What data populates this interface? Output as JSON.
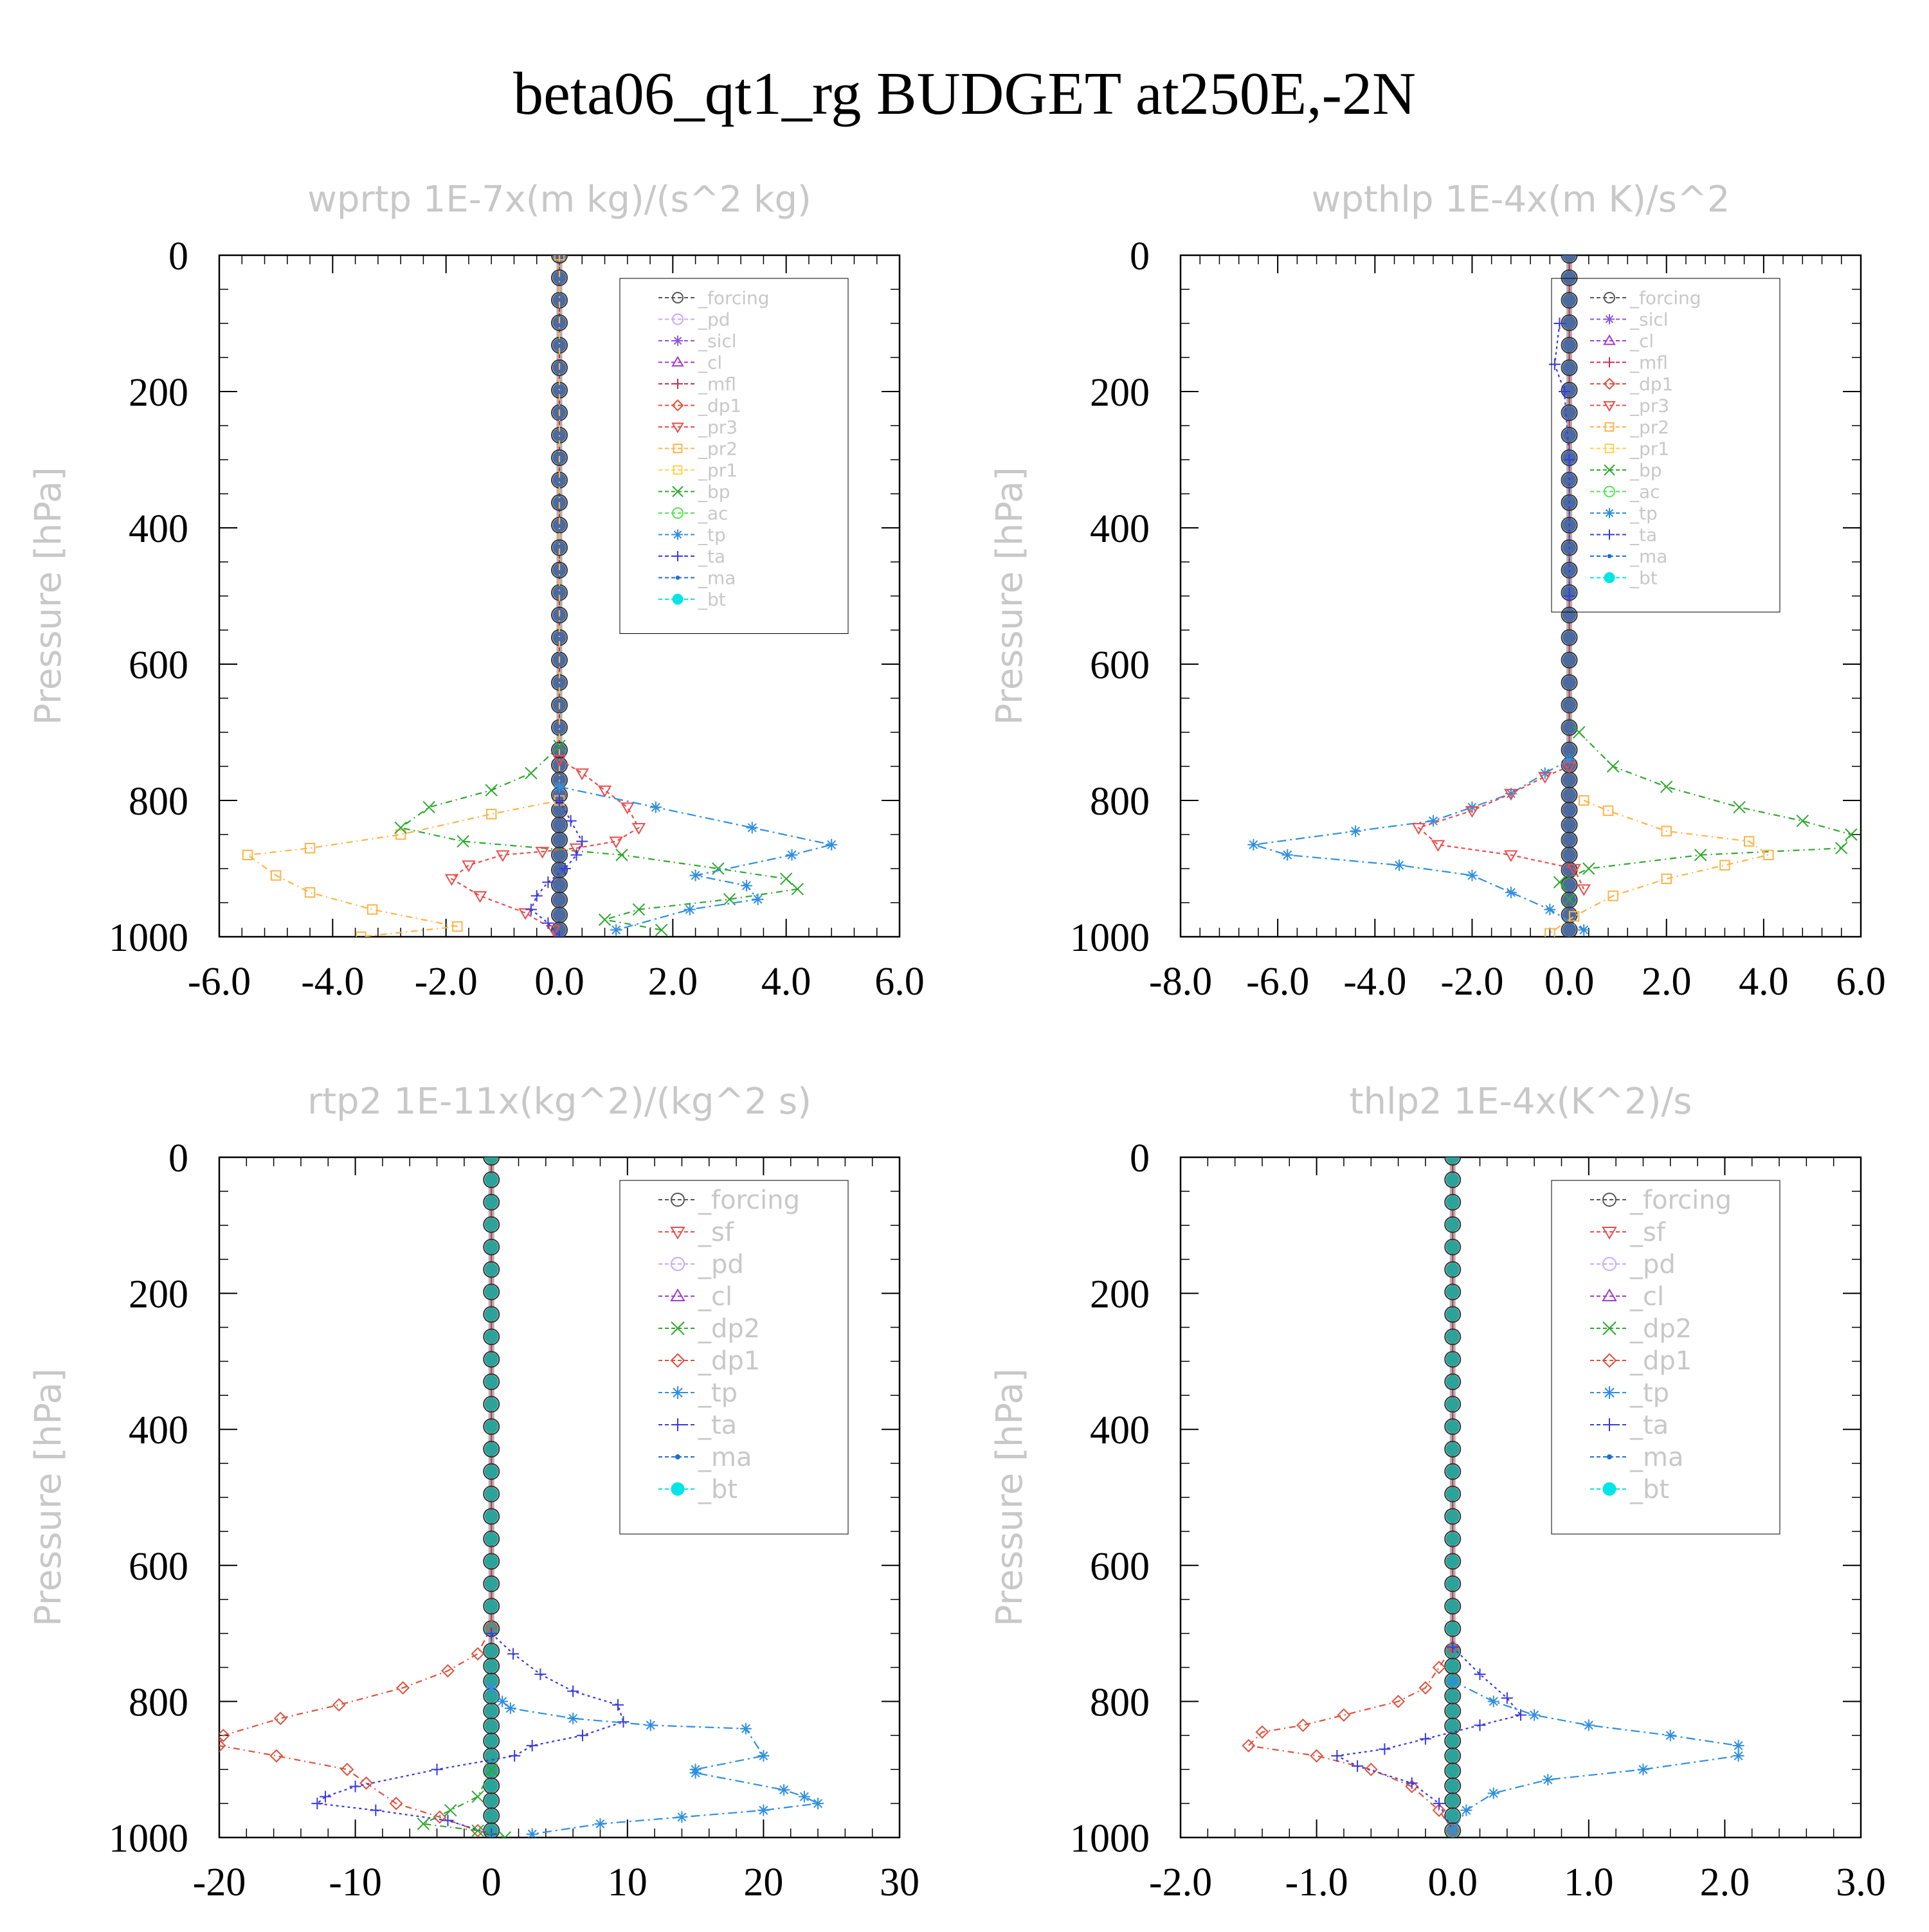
{
  "title": "beta06_qt1_rg  BUDGET at250E,-2N",
  "marker_colors": {
    "_forcing": "#555555",
    "_pd": "#c9a6ff",
    "_sicl": "#8a5ad8",
    "_cl": "#a23bd0",
    "_mfl": "#c8304f",
    "_dp1": "#e0503c",
    "_pr3": "#ee4b4b",
    "_pr2": "#ffb347",
    "_pr1": "#ffd24a",
    "_bp": "#2ea82e",
    "_ac": "#55e055",
    "_tp": "#2f8fe0",
    "_ta": "#3a3ae0",
    "_ma": "#1f6fd0",
    "_bt": "#00e5e5",
    "_sf": "#ee4b4b",
    "_dp2": "#2ea82e"
  },
  "chart_data": [
    {
      "type": "line",
      "title": "wprtp  1E-7x(m kg)/(s^2 kg)",
      "ylabel": "Pressure [hPa]",
      "xlim": [
        -6.0,
        6.0
      ],
      "ylim": [
        0,
        1000
      ],
      "y_inverted": true,
      "xticks": [
        "-6.0",
        "-4.0",
        "-2.0",
        "0.0",
        "2.0",
        "4.0",
        "6.0"
      ],
      "yticks": [
        "0",
        "200",
        "400",
        "600",
        "800",
        "1000"
      ],
      "legend": [
        "_forcing",
        "_pd",
        "_sicl",
        "_cl",
        "_mfl",
        "_dp1",
        "_pr3",
        "_pr2",
        "_pr1",
        "_bp",
        "_ac",
        "_tp",
        "_ta",
        "_ma",
        "_bt"
      ],
      "legend_position": "upper-right",
      "series": [
        {
          "name": "_pr2",
          "x": [
            0,
            0,
            -1.2,
            -2.8,
            -4.4,
            -5.5,
            -5.0,
            -4.4,
            -3.3,
            -1.8,
            -3.5
          ],
          "y": [
            0,
            800,
            820,
            850,
            870,
            880,
            910,
            935,
            960,
            985,
            1000
          ]
        },
        {
          "name": "_bp",
          "x": [
            0,
            -0.5,
            -1.2,
            -2.3,
            -2.8,
            -1.7,
            1.1,
            2.8,
            4.0,
            4.2,
            3.0,
            1.4,
            0.8,
            1.8
          ],
          "y": [
            720,
            760,
            785,
            810,
            840,
            860,
            880,
            900,
            915,
            930,
            945,
            960,
            975,
            990
          ]
        },
        {
          "name": "_pr3",
          "x": [
            0,
            0.4,
            0.8,
            1.2,
            1.4,
            1.0,
            0.3,
            -0.3,
            -1.0,
            -1.6,
            -1.9,
            -1.4,
            -0.6,
            -0.1
          ],
          "y": [
            740,
            760,
            785,
            810,
            840,
            860,
            870,
            875,
            880,
            895,
            915,
            940,
            965,
            990
          ]
        },
        {
          "name": "_tp",
          "x": [
            0,
            1.7,
            3.4,
            4.8,
            4.1,
            2.4,
            3.3,
            3.5,
            2.3,
            1.0
          ],
          "y": [
            780,
            810,
            840,
            865,
            880,
            910,
            925,
            945,
            960,
            990
          ]
        },
        {
          "name": "_ta",
          "x": [
            0,
            0.2,
            0.4,
            0.3,
            0.1,
            -0.2,
            -0.4,
            -0.5,
            -0.2,
            0
          ],
          "y": [
            800,
            830,
            860,
            880,
            900,
            920,
            940,
            960,
            980,
            1000
          ]
        }
      ]
    },
    {
      "type": "line",
      "title": "wpthlp  1E-4x(m K)/s^2",
      "ylabel": "Pressure [hPa]",
      "xlim": [
        -8.0,
        6.0
      ],
      "ylim": [
        0,
        1000
      ],
      "y_inverted": true,
      "xticks": [
        "-8.0",
        "-6.0",
        "-4.0",
        "-2.0",
        "0.0",
        "2.0",
        "4.0",
        "6.0"
      ],
      "yticks": [
        "0",
        "200",
        "400",
        "600",
        "800",
        "1000"
      ],
      "legend": [
        "_forcing",
        "_sicl",
        "_cl",
        "_mfl",
        "_dp1",
        "_pr3",
        "_pr2",
        "_pr1",
        "_bp",
        "_ac",
        "_tp",
        "_ta",
        "_ma",
        "_bt"
      ],
      "legend_position": "upper-right",
      "series": [
        {
          "name": "_tp",
          "x": [
            0,
            -0.5,
            -1.2,
            -2.0,
            -2.8,
            -4.4,
            -6.5,
            -5.8,
            -3.5,
            -2.0,
            -1.2,
            -0.4,
            0.3
          ],
          "y": [
            740,
            760,
            790,
            810,
            830,
            845,
            865,
            880,
            895,
            910,
            935,
            960,
            990
          ]
        },
        {
          "name": "_bp",
          "x": [
            0.2,
            0.9,
            2.0,
            3.5,
            4.8,
            5.8,
            5.6,
            2.7,
            0.4,
            -0.2,
            0
          ],
          "y": [
            700,
            750,
            780,
            810,
            830,
            850,
            870,
            880,
            900,
            920,
            945
          ]
        },
        {
          "name": "_pr3",
          "x": [
            0,
            -0.5,
            -1.2,
            -2.0,
            -3.1,
            -2.7,
            -1.2,
            0.1,
            0.3
          ],
          "y": [
            750,
            765,
            790,
            815,
            840,
            865,
            880,
            900,
            930
          ]
        },
        {
          "name": "_pr2",
          "x": [
            0.3,
            0.8,
            2.0,
            3.7,
            4.1,
            3.2,
            2.0,
            0.9,
            0.1,
            -0.4
          ],
          "y": [
            800,
            815,
            845,
            860,
            880,
            895,
            915,
            940,
            970,
            995
          ]
        },
        {
          "name": "_ta",
          "x": [
            -0.2,
            -0.3,
            -0.1,
            0,
            0
          ],
          "y": [
            100,
            160,
            200,
            300,
            500
          ]
        }
      ]
    },
    {
      "type": "line",
      "title": "rtp2  1E-11x(kg^2)/(kg^2 s)",
      "ylabel": "Pressure [hPa]",
      "xlim": [
        -20,
        30
      ],
      "ylim": [
        0,
        1000
      ],
      "y_inverted": true,
      "xticks": [
        "-20",
        "-10",
        "0",
        "10",
        "20",
        "30"
      ],
      "yticks": [
        "0",
        "200",
        "400",
        "600",
        "800",
        "1000"
      ],
      "legend": [
        "_forcing",
        "_sf",
        "_pd",
        "_cl",
        "_dp2",
        "_dp1",
        "_tp",
        "_ta",
        "_ma",
        "_bt"
      ],
      "legend_position": "upper-right",
      "series": [
        {
          "name": "_dp1",
          "x": [
            0,
            -1.0,
            -3.2,
            -6.5,
            -11.2,
            -15.5,
            -19.7,
            -20.0,
            -15.8,
            -10.6,
            -9.2,
            -7.0,
            -3.8,
            -1.0
          ],
          "y": [
            690,
            730,
            755,
            780,
            805,
            825,
            850,
            865,
            880,
            900,
            920,
            950,
            970,
            990
          ]
        },
        {
          "name": "_ta",
          "x": [
            0,
            1.6,
            3.6,
            6.0,
            9.3,
            9.7,
            6.7,
            3.0,
            1.7,
            -4.0,
            -10.0,
            -12.2,
            -12.8,
            -8.5,
            -3.2,
            0
          ],
          "y": [
            700,
            730,
            760,
            785,
            805,
            830,
            850,
            865,
            880,
            900,
            925,
            940,
            950,
            960,
            975,
            995
          ]
        },
        {
          "name": "_tp",
          "x": [
            0,
            0.8,
            1.4,
            6.0,
            11.7,
            18.7,
            20.0,
            15.0,
            15.0,
            21.5,
            23.0,
            24.0,
            20.0,
            14.0,
            8.0,
            3.0
          ],
          "y": [
            780,
            800,
            810,
            825,
            835,
            840,
            880,
            900,
            905,
            930,
            940,
            950,
            960,
            970,
            980,
            995
          ]
        },
        {
          "name": "_dp2",
          "x": [
            0,
            -1.0,
            -3.0,
            -5.0,
            -1.0,
            1.0
          ],
          "y": [
            900,
            940,
            960,
            980,
            990,
            1000
          ]
        }
      ]
    },
    {
      "type": "line",
      "title": "thlp2  1E-4x(K^2)/s",
      "ylabel": "Pressure [hPa]",
      "xlim": [
        -2.0,
        3.0
      ],
      "ylim": [
        0,
        1000
      ],
      "y_inverted": true,
      "xticks": [
        "-2.0",
        "-1.0",
        "0.0",
        "1.0",
        "2.0",
        "3.0"
      ],
      "yticks": [
        "0",
        "200",
        "400",
        "600",
        "800",
        "1000"
      ],
      "legend": [
        "_forcing",
        "_sf",
        "_pd",
        "_cl",
        "_dp2",
        "_dp1",
        "_tp",
        "_ta",
        "_ma",
        "_bt"
      ],
      "legend_position": "upper-right",
      "series": [
        {
          "name": "_dp1",
          "x": [
            0,
            -0.1,
            -0.2,
            -0.4,
            -0.8,
            -1.1,
            -1.4,
            -1.5,
            -1.0,
            -0.6,
            -0.3,
            -0.1,
            0
          ],
          "y": [
            720,
            750,
            780,
            800,
            820,
            835,
            845,
            865,
            880,
            900,
            925,
            960,
            990
          ]
        },
        {
          "name": "_ta",
          "x": [
            0,
            0.2,
            0.4,
            0.5,
            0.2,
            -0.2,
            -0.5,
            -0.85,
            -0.7,
            -0.3,
            -0.1,
            0
          ],
          "y": [
            720,
            760,
            795,
            820,
            835,
            855,
            870,
            880,
            895,
            920,
            950,
            990
          ]
        },
        {
          "name": "_tp",
          "x": [
            0,
            0.3,
            0.6,
            1.0,
            1.6,
            2.1,
            2.1,
            1.4,
            0.7,
            0.3,
            0.1,
            0
          ],
          "y": [
            770,
            800,
            820,
            835,
            850,
            865,
            880,
            900,
            915,
            935,
            960,
            990
          ]
        }
      ]
    }
  ]
}
